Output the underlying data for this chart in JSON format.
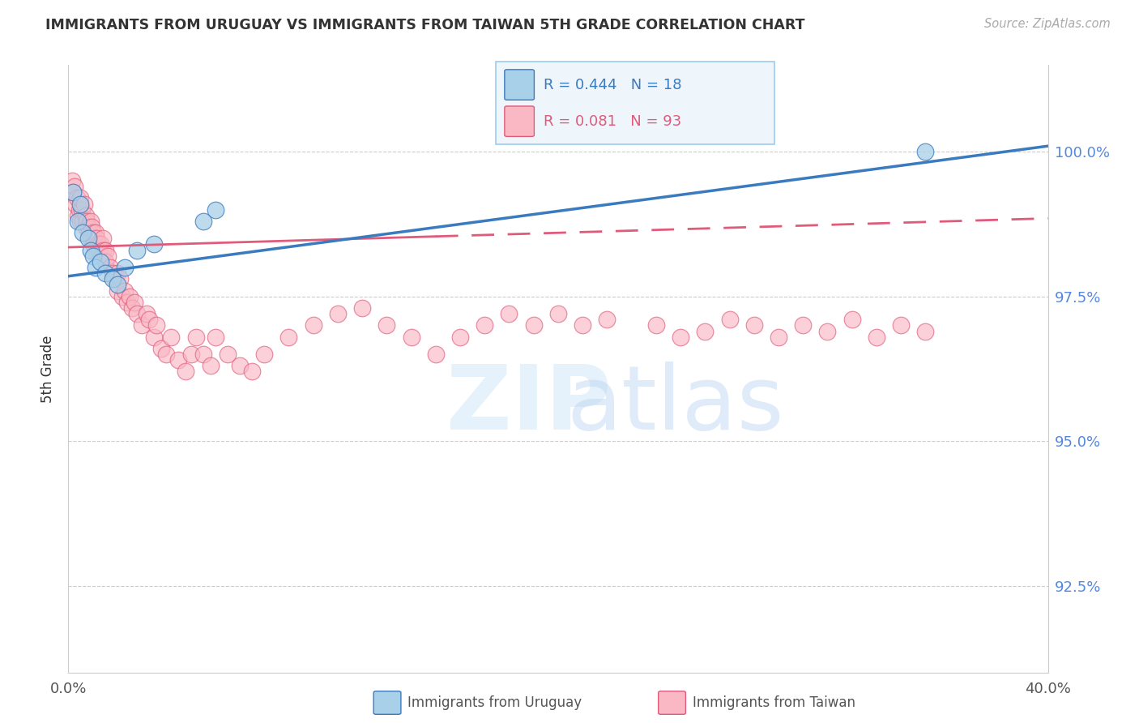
{
  "title": "IMMIGRANTS FROM URUGUAY VS IMMIGRANTS FROM TAIWAN 5TH GRADE CORRELATION CHART",
  "source_text": "Source: ZipAtlas.com",
  "ylabel": "5th Grade",
  "xlim": [
    0.0,
    40.0
  ],
  "ylim": [
    91.0,
    101.5
  ],
  "yticks": [
    92.5,
    95.0,
    97.5,
    100.0
  ],
  "ytick_labels": [
    "92.5%",
    "95.0%",
    "97.5%",
    "100.0%"
  ],
  "xtick_positions": [
    0.0,
    10.0,
    20.0,
    30.0,
    40.0
  ],
  "xtick_labels": [
    "0.0%",
    "",
    "",
    "",
    "40.0%"
  ],
  "uruguay_R": 0.444,
  "uruguay_N": 18,
  "taiwan_R": 0.081,
  "taiwan_N": 93,
  "uruguay_color": "#a8d0e8",
  "taiwan_color": "#f9b8c4",
  "trendline_uruguay_color": "#3a7abf",
  "trendline_taiwan_color": "#e05a7a",
  "uruguay_x": [
    0.2,
    0.4,
    0.5,
    0.6,
    0.8,
    0.9,
    1.0,
    1.1,
    1.3,
    1.5,
    1.8,
    2.0,
    2.3,
    2.8,
    3.5,
    5.5,
    6.0,
    35.0
  ],
  "uruguay_y": [
    99.3,
    98.8,
    99.1,
    98.6,
    98.5,
    98.3,
    98.2,
    98.0,
    98.1,
    97.9,
    97.8,
    97.7,
    98.0,
    98.3,
    98.4,
    98.8,
    99.0,
    100.0
  ],
  "taiwan_x": [
    0.15,
    0.2,
    0.25,
    0.3,
    0.35,
    0.4,
    0.45,
    0.5,
    0.5,
    0.55,
    0.6,
    0.65,
    0.7,
    0.7,
    0.75,
    0.8,
    0.85,
    0.9,
    0.9,
    0.95,
    1.0,
    1.0,
    1.05,
    1.1,
    1.1,
    1.15,
    1.2,
    1.25,
    1.3,
    1.35,
    1.4,
    1.4,
    1.5,
    1.5,
    1.6,
    1.7,
    1.8,
    1.9,
    2.0,
    2.0,
    2.1,
    2.2,
    2.3,
    2.4,
    2.5,
    2.6,
    2.7,
    2.8,
    3.0,
    3.2,
    3.3,
    3.5,
    3.6,
    3.8,
    4.0,
    4.2,
    4.5,
    4.8,
    5.0,
    5.2,
    5.5,
    5.8,
    6.0,
    6.5,
    7.0,
    7.5,
    8.0,
    9.0,
    10.0,
    11.0,
    12.0,
    13.0,
    14.0,
    15.0,
    16.0,
    17.0,
    18.0,
    19.0,
    20.0,
    21.0,
    22.0,
    24.0,
    25.0,
    26.0,
    27.0,
    28.0,
    29.0,
    30.0,
    31.0,
    32.0,
    33.0,
    34.0,
    35.0
  ],
  "taiwan_y": [
    99.5,
    99.3,
    99.4,
    99.1,
    99.2,
    98.9,
    99.0,
    99.2,
    98.8,
    99.0,
    98.8,
    99.1,
    98.9,
    98.7,
    98.8,
    98.7,
    98.6,
    98.8,
    98.5,
    98.7,
    98.6,
    98.4,
    98.5,
    98.6,
    98.3,
    98.5,
    98.4,
    98.3,
    98.4,
    98.2,
    98.5,
    98.3,
    98.3,
    98.1,
    98.2,
    98.0,
    97.9,
    97.8,
    97.9,
    97.6,
    97.8,
    97.5,
    97.6,
    97.4,
    97.5,
    97.3,
    97.4,
    97.2,
    97.0,
    97.2,
    97.1,
    96.8,
    97.0,
    96.6,
    96.5,
    96.8,
    96.4,
    96.2,
    96.5,
    96.8,
    96.5,
    96.3,
    96.8,
    96.5,
    96.3,
    96.2,
    96.5,
    96.8,
    97.0,
    97.2,
    97.3,
    97.0,
    96.8,
    96.5,
    96.8,
    97.0,
    97.2,
    97.0,
    97.2,
    97.0,
    97.1,
    97.0,
    96.8,
    96.9,
    97.1,
    97.0,
    96.8,
    97.0,
    96.9,
    97.1,
    96.8,
    97.0,
    96.9
  ],
  "trendline_uru_x0": 0.0,
  "trendline_uru_x1": 40.0,
  "trendline_uru_y0": 97.85,
  "trendline_uru_y1": 100.1,
  "trendline_taiwan_x0": 0.0,
  "trendline_taiwan_x1": 40.0,
  "trendline_taiwan_y0": 98.35,
  "trendline_taiwan_y1": 98.85,
  "trendline_taiwan_solid_end_x": 15.0,
  "legend_text_color_uru": "#3a7abf",
  "legend_text_color_tw": "#e05a7a",
  "watermark_zip_color": "#d0e8f8",
  "watermark_atlas_color": "#b8d4f0",
  "grid_color": "#cccccc",
  "spine_color": "#cccccc",
  "tick_label_color": "#555555",
  "right_tick_color": "#5588dd",
  "source_color": "#aaaaaa",
  "title_color": "#333333"
}
